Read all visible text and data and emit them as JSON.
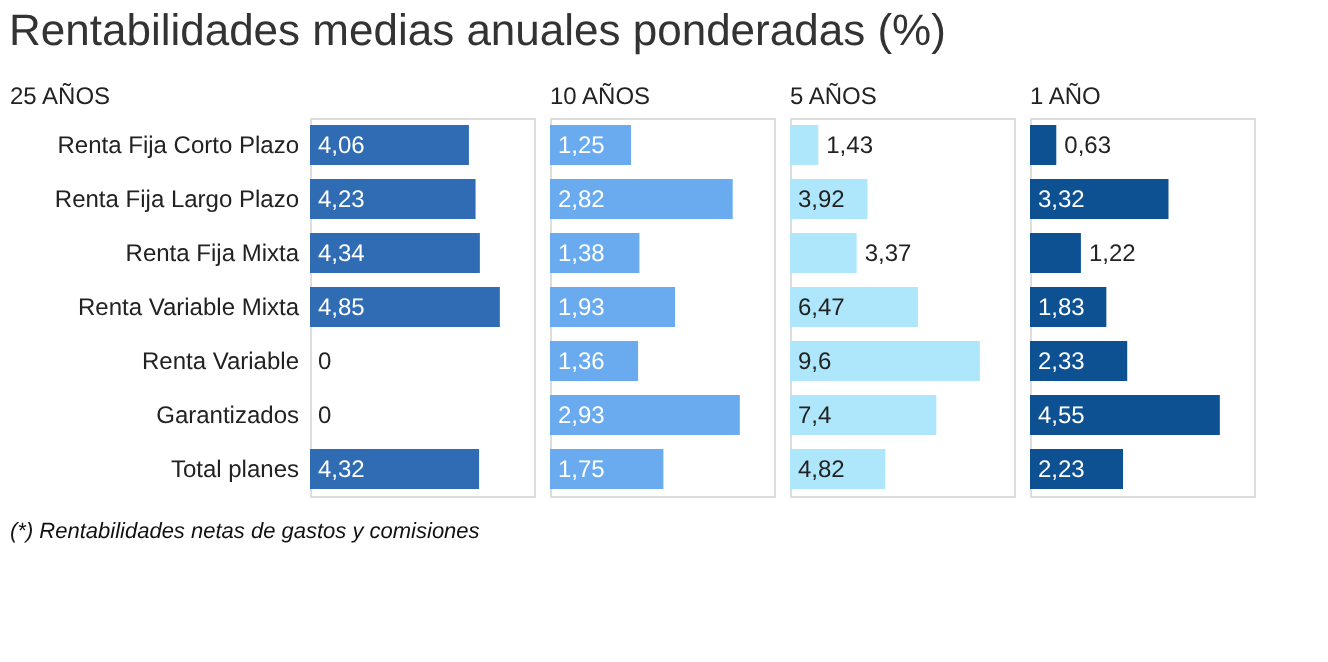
{
  "chart_data": [
    {
      "type": "bar",
      "orientation": "horizontal",
      "title": "Rentabilidades medias anuales ponderadas (%)",
      "subtitle": "25 AÑOS",
      "annotations": [
        "(*) Rentabilidades netas de gastos y comisiones"
      ],
      "categories": [
        "Renta Fija Corto Plazo",
        "Renta Fija Largo Plazo",
        "Renta Fija Mixta",
        "Renta Variable Mixta",
        "Renta Variable",
        "Garantizados",
        "Total planes"
      ],
      "values": [
        4.06,
        4.23,
        4.34,
        4.85,
        0,
        0,
        4.32
      ],
      "value_labels": [
        "4,06",
        "4,23",
        "4,34",
        "4,85",
        "0",
        "0",
        "4,32"
      ],
      "color": "#2f6cb3",
      "tick_labels": "y",
      "grid": false
    },
    {
      "type": "bar",
      "orientation": "horizontal",
      "subtitle": "10 AÑOS",
      "categories": [
        null,
        null,
        null,
        null,
        null,
        null,
        null
      ],
      "values": [
        1.25,
        2.82,
        1.38,
        1.93,
        1.36,
        2.93,
        1.75
      ],
      "value_labels": [
        "1,25",
        "2,82",
        "1,38",
        "1,93",
        "1,36",
        "2,93",
        "1,75"
      ],
      "color": "#6aabef",
      "tick_labels": false,
      "grid": false
    },
    {
      "type": "bar",
      "orientation": "horizontal",
      "subtitle": "5 AÑOS",
      "categories": [
        null,
        null,
        null,
        null,
        null,
        null,
        null
      ],
      "values": [
        1.43,
        3.92,
        3.37,
        6.47,
        9.6,
        7.4,
        4.82
      ],
      "value_labels": [
        "1,43",
        "3,92",
        "3,37",
        "6,47",
        "9,6",
        "7,4",
        "4,82"
      ],
      "color": "#aee6fb",
      "tick_labels": false,
      "grid": false
    },
    {
      "type": "bar",
      "orientation": "horizontal",
      "subtitle": "1 AÑO",
      "categories": [
        null,
        null,
        null,
        null,
        null,
        null,
        null
      ],
      "values": [
        0.63,
        3.32,
        1.22,
        1.83,
        2.33,
        4.55,
        2.23
      ],
      "value_labels": [
        "0,63",
        "3,32",
        "1,22",
        "1,83",
        "2,33",
        "4,55",
        "2,23"
      ],
      "color": "#0d5192",
      "tick_labels": false,
      "grid": false
    }
  ]
}
